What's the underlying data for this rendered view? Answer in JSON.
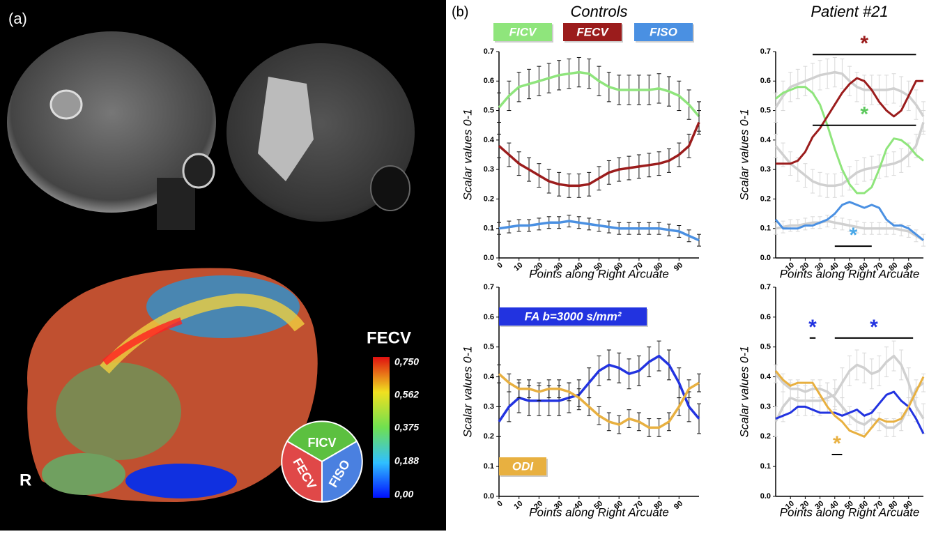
{
  "panel_a": {
    "label": "(a)",
    "colorbar_title": "FECV",
    "colorbar_labels": [
      "0,750",
      "0,562",
      "0,375",
      "0,188",
      "0,00"
    ],
    "orientation": "R",
    "pie_labels": [
      "FICV",
      "FECV",
      "FISO"
    ]
  },
  "panel_b_label": "(b)",
  "chart_data": [
    {
      "type": "line",
      "title": "Controls",
      "xlabel": "Points along Right Arcuate",
      "ylabel": "Scalar values 0-1",
      "x": [
        0,
        5,
        10,
        15,
        20,
        25,
        30,
        35,
        40,
        45,
        50,
        55,
        60,
        65,
        70,
        75,
        80,
        85,
        90,
        95,
        100
      ],
      "xlim": [
        0,
        100
      ],
      "ylim": [
        0,
        0.7
      ],
      "xticks": [
        0,
        10,
        20,
        30,
        40,
        50,
        60,
        70,
        80,
        90
      ],
      "yticks": [
        {
          "value": 0,
          "label": "0.0"
        },
        0.1,
        0.2,
        0.3,
        0.4,
        0.5,
        0.6,
        0.7
      ],
      "series": [
        {
          "name": "FICV",
          "color": "#8fe57c",
          "error": 0.05,
          "error_color": "#111111",
          "values": [
            0.51,
            0.55,
            0.58,
            0.59,
            0.6,
            0.61,
            0.62,
            0.625,
            0.63,
            0.625,
            0.6,
            0.58,
            0.57,
            0.57,
            0.57,
            0.57,
            0.575,
            0.565,
            0.55,
            0.52,
            0.48
          ]
        },
        {
          "name": "FECV",
          "color": "#9b1c1c",
          "error": 0.04,
          "error_color": "#111111",
          "values": [
            0.38,
            0.35,
            0.32,
            0.3,
            0.28,
            0.26,
            0.25,
            0.245,
            0.245,
            0.25,
            0.27,
            0.29,
            0.3,
            0.305,
            0.31,
            0.315,
            0.32,
            0.33,
            0.35,
            0.38,
            0.46
          ]
        },
        {
          "name": "FISO",
          "color": "#4a90e2",
          "error": 0.02,
          "error_color": "#111111",
          "values": [
            0.1,
            0.105,
            0.11,
            0.11,
            0.115,
            0.12,
            0.12,
            0.125,
            0.12,
            0.115,
            0.11,
            0.105,
            0.1,
            0.1,
            0.1,
            0.1,
            0.1,
            0.095,
            0.09,
            0.075,
            0.06
          ]
        }
      ]
    },
    {
      "type": "line",
      "title": "Patient #21",
      "xlabel": "Points along Right Arcuate",
      "ylabel": "Scalar values 0-1",
      "x": [
        0,
        5,
        10,
        15,
        20,
        25,
        30,
        35,
        40,
        45,
        50,
        55,
        60,
        65,
        70,
        75,
        80,
        85,
        90,
        95,
        100
      ],
      "xlim": [
        0,
        100
      ],
      "ylim": [
        0,
        0.7
      ],
      "xticks": [
        10,
        20,
        30,
        40,
        50,
        60,
        70,
        80,
        90
      ],
      "yticks": [
        {
          "value": 0,
          "label": "0.0"
        },
        0.1,
        0.2,
        0.3,
        0.4,
        0.5,
        0.6,
        0.7
      ],
      "series": [
        {
          "color": "#d0d0d0",
          "error": 0.05,
          "error_color": "#d8d8d8",
          "values": [
            0.51,
            0.55,
            0.58,
            0.59,
            0.6,
            0.61,
            0.62,
            0.625,
            0.63,
            0.625,
            0.6,
            0.58,
            0.57,
            0.57,
            0.57,
            0.57,
            0.575,
            0.565,
            0.55,
            0.52,
            0.48
          ]
        },
        {
          "color": "#d0d0d0",
          "error": 0.04,
          "error_color": "#d8d8d8",
          "values": [
            0.38,
            0.35,
            0.32,
            0.3,
            0.28,
            0.26,
            0.25,
            0.245,
            0.245,
            0.25,
            0.27,
            0.29,
            0.3,
            0.305,
            0.31,
            0.315,
            0.32,
            0.33,
            0.35,
            0.38,
            0.46
          ]
        },
        {
          "color": "#d0d0d0",
          "error": 0.02,
          "error_color": "#d8d8d8",
          "values": [
            0.1,
            0.105,
            0.11,
            0.11,
            0.115,
            0.12,
            0.12,
            0.125,
            0.12,
            0.115,
            0.11,
            0.105,
            0.1,
            0.1,
            0.1,
            0.1,
            0.1,
            0.095,
            0.09,
            0.075,
            0.06
          ]
        },
        {
          "color": "#8fe57c",
          "values": [
            0.54,
            0.56,
            0.57,
            0.58,
            0.58,
            0.56,
            0.52,
            0.45,
            0.37,
            0.3,
            0.25,
            0.22,
            0.22,
            0.24,
            0.3,
            0.37,
            0.405,
            0.4,
            0.38,
            0.35,
            0.33
          ]
        },
        {
          "color": "#9b1c1c",
          "values": [
            0.32,
            0.32,
            0.32,
            0.33,
            0.36,
            0.41,
            0.44,
            0.48,
            0.52,
            0.56,
            0.59,
            0.61,
            0.6,
            0.57,
            0.53,
            0.5,
            0.48,
            0.5,
            0.55,
            0.6,
            0.6
          ]
        },
        {
          "color": "#4a90e2",
          "values": [
            0.13,
            0.1,
            0.1,
            0.1,
            0.11,
            0.11,
            0.12,
            0.13,
            0.15,
            0.18,
            0.19,
            0.18,
            0.17,
            0.18,
            0.17,
            0.13,
            0.11,
            0.11,
            0.1,
            0.08,
            0.06
          ]
        }
      ],
      "annotations": [
        {
          "text": "*",
          "color": "#9b1c1c",
          "x": [
            25,
            95
          ],
          "y": 0.69
        },
        {
          "text": "*",
          "color": "#5cc85c",
          "x": [
            25,
            95
          ],
          "y": 0.45
        },
        {
          "text": "*",
          "color": "#4aa8e8",
          "x": [
            40,
            65
          ],
          "y": 0.04
        }
      ]
    },
    {
      "type": "line",
      "xlabel": "Points along Right Arcuate",
      "ylabel": "Scalar values 0-1",
      "x": [
        0,
        5,
        10,
        15,
        20,
        25,
        30,
        35,
        40,
        45,
        50,
        55,
        60,
        65,
        70,
        75,
        80,
        85,
        90,
        95,
        100
      ],
      "xlim": [
        0,
        100
      ],
      "ylim": [
        0,
        0.7
      ],
      "xticks": [
        0,
        10,
        20,
        30,
        40,
        50,
        60,
        70,
        80,
        90
      ],
      "yticks": [
        {
          "value": 0,
          "label": "0.0"
        },
        0.1,
        0.2,
        0.3,
        0.4,
        0.5,
        0.6,
        0.7
      ],
      "series": [
        {
          "name": "FA b=3000 s/mm²",
          "color": "#2233e0",
          "error": 0.05,
          "error_color": "#111111",
          "values": [
            0.25,
            0.3,
            0.33,
            0.32,
            0.32,
            0.32,
            0.32,
            0.33,
            0.34,
            0.38,
            0.42,
            0.44,
            0.43,
            0.41,
            0.42,
            0.45,
            0.47,
            0.44,
            0.38,
            0.3,
            0.26
          ]
        },
        {
          "name": "ODI",
          "color": "#e8b040",
          "error": 0.03,
          "error_color": "#111111",
          "values": [
            0.41,
            0.38,
            0.36,
            0.36,
            0.35,
            0.36,
            0.36,
            0.35,
            0.33,
            0.3,
            0.27,
            0.25,
            0.24,
            0.26,
            0.25,
            0.23,
            0.23,
            0.25,
            0.3,
            0.36,
            0.38
          ]
        }
      ]
    },
    {
      "type": "line",
      "xlabel": "Points along Right Arcuate",
      "ylabel": "Scalar values 0-1",
      "x": [
        0,
        5,
        10,
        15,
        20,
        25,
        30,
        35,
        40,
        45,
        50,
        55,
        60,
        65,
        70,
        75,
        80,
        85,
        90,
        95,
        100
      ],
      "xlim": [
        0,
        100
      ],
      "ylim": [
        0,
        0.7
      ],
      "xticks": [
        10,
        20,
        30,
        40,
        50,
        60,
        70,
        80,
        90
      ],
      "yticks": [
        {
          "value": 0,
          "label": "0.0"
        },
        0.1,
        0.2,
        0.3,
        0.4,
        0.5,
        0.6,
        0.7
      ],
      "series": [
        {
          "color": "#d0d0d0",
          "error": 0.05,
          "error_color": "#d8d8d8",
          "values": [
            0.25,
            0.3,
            0.33,
            0.32,
            0.32,
            0.32,
            0.32,
            0.33,
            0.34,
            0.38,
            0.42,
            0.44,
            0.43,
            0.41,
            0.42,
            0.45,
            0.47,
            0.44,
            0.38,
            0.3,
            0.26
          ]
        },
        {
          "color": "#d0d0d0",
          "error": 0.03,
          "error_color": "#d8d8d8",
          "values": [
            0.41,
            0.38,
            0.36,
            0.36,
            0.35,
            0.36,
            0.36,
            0.35,
            0.33,
            0.3,
            0.27,
            0.25,
            0.24,
            0.26,
            0.25,
            0.23,
            0.23,
            0.25,
            0.3,
            0.36,
            0.38
          ]
        },
        {
          "color": "#2233e0",
          "values": [
            0.26,
            0.27,
            0.28,
            0.3,
            0.3,
            0.29,
            0.28,
            0.28,
            0.28,
            0.27,
            0.28,
            0.29,
            0.27,
            0.28,
            0.31,
            0.34,
            0.35,
            0.32,
            0.3,
            0.26,
            0.21
          ]
        },
        {
          "color": "#e8b040",
          "values": [
            0.42,
            0.39,
            0.37,
            0.38,
            0.38,
            0.38,
            0.34,
            0.3,
            0.27,
            0.25,
            0.22,
            0.21,
            0.2,
            0.23,
            0.26,
            0.25,
            0.25,
            0.26,
            0.3,
            0.35,
            0.4
          ]
        }
      ],
      "annotations": [
        {
          "text": "*",
          "color": "#2233e0",
          "x": [
            23,
            27
          ],
          "y": 0.53
        },
        {
          "text": "*",
          "color": "#2233e0",
          "x": [
            40,
            93
          ],
          "y": 0.53
        },
        {
          "text": "*",
          "color": "#e8b040",
          "x": [
            38,
            45
          ],
          "y": 0.14
        }
      ]
    }
  ]
}
